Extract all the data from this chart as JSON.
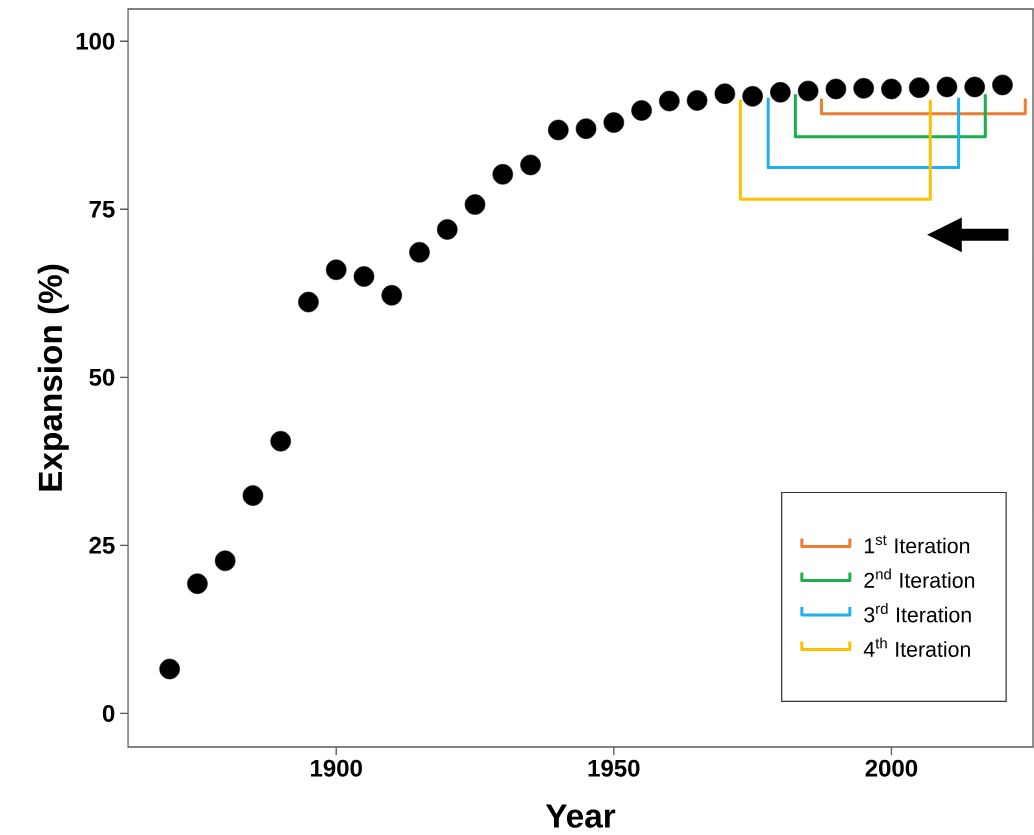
{
  "chart_data": {
    "type": "scatter",
    "xlabel": "Year",
    "ylabel": "Expansion (%)",
    "xlim": [
      1862.5,
      2025.5
    ],
    "ylim": [
      -5,
      104.8
    ],
    "xticks": [
      1900,
      1950,
      2000
    ],
    "yticks": [
      0,
      25,
      50,
      75,
      100
    ],
    "grid": false,
    "legend": "bottom right",
    "series": [
      {
        "marker": "circle",
        "color": "#000000",
        "x": [
          1870,
          1875,
          1880,
          1885,
          1890,
          1895,
          1900,
          1905,
          1910,
          1915,
          1920,
          1925,
          1930,
          1935,
          1940,
          1945,
          1950,
          1955,
          1960,
          1965,
          1970,
          1975,
          1980,
          1985,
          1990,
          1995,
          2000,
          2005,
          2010,
          2015,
          2020
        ],
        "values": [
          6.6,
          19.3,
          22.7,
          32.4,
          40.5,
          61.2,
          66.0,
          65.0,
          62.2,
          68.6,
          72.0,
          75.7,
          80.2,
          81.6,
          86.8,
          87.0,
          87.9,
          89.7,
          91.1,
          91.2,
          92.2,
          91.8,
          92.4,
          92.6,
          92.9,
          93.0,
          92.9,
          93.1,
          93.2,
          93.2,
          93.5
        ]
      },
      {
        "type": "line",
        "marker": "none",
        "line_style": "solid",
        "name": "1$^{st}$ Iteration",
        "color": "#ed7d31",
        "x": [
          1987.4,
          1987.4,
          2024.1,
          2024.1
        ],
        "values": [
          91.5,
          89.2,
          89.2,
          91.5
        ]
      },
      {
        "type": "line",
        "marker": "none",
        "line_style": "solid",
        "name": "2$^{nd}$ Iteration",
        "color": "#1aaf4b",
        "x": [
          1982.7,
          1982.7,
          2016.9,
          2016.9
        ],
        "values": [
          92.1,
          85.8,
          85.8,
          92.1
        ]
      },
      {
        "type": "line",
        "marker": "none",
        "line_style": "solid",
        "name": "3$^{rd}$ Iteration",
        "color": "#1fb0f0",
        "x": [
          1977.8,
          1977.8,
          2012.1,
          2012.1
        ],
        "values": [
          91.6,
          81.2,
          81.2,
          91.6
        ]
      },
      {
        "type": "line",
        "marker": "none",
        "line_style": "solid",
        "name": "4$^{th}$ Iteration",
        "color": "#ffc000",
        "x": [
          1972.8,
          1972.8,
          2007.0,
          2007.0
        ],
        "values": [
          91.3,
          76.5,
          76.5,
          91.3
        ]
      }
    ]
  }
}
